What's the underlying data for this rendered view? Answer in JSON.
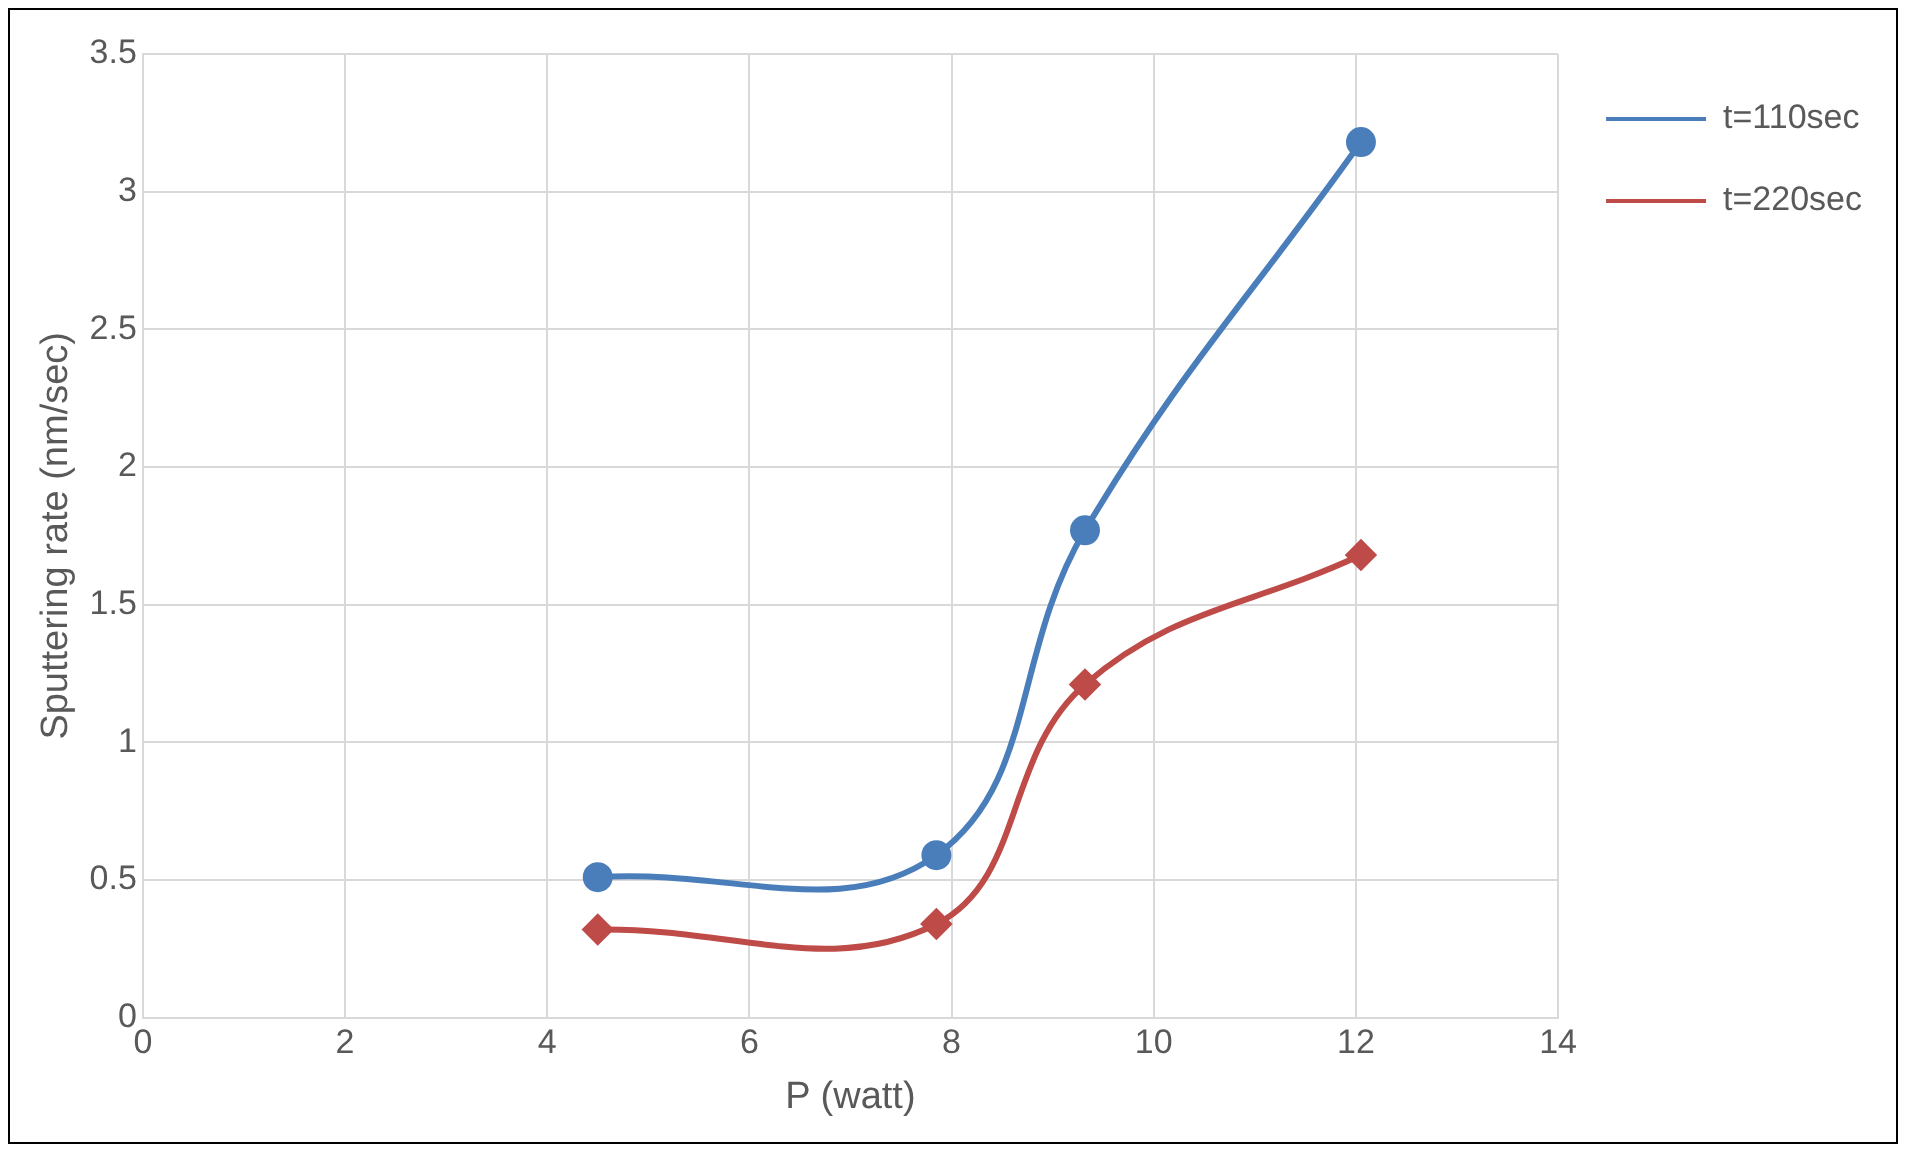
{
  "chart_data": {
    "type": "line",
    "xlabel": "P (watt)",
    "ylabel": "Sputtering rate (nm/sec)",
    "xlim": [
      0,
      14
    ],
    "xticks": [
      0,
      2,
      4,
      6,
      8,
      10,
      12,
      14
    ],
    "ylim": [
      0,
      3.5
    ],
    "yticks": [
      0,
      0.5,
      1,
      1.5,
      2,
      2.5,
      3,
      3.5
    ],
    "grid": true,
    "legend": "top right",
    "x": [
      4.5,
      7.85,
      9.32,
      12.05
    ],
    "series": [
      {
        "name": "t=110sec",
        "color": "#4a7ebb",
        "marker": "circle",
        "values": [
          0.51,
          0.59,
          1.77,
          3.18
        ]
      },
      {
        "name": "t=220sec",
        "color": "#be4b48",
        "marker": "diamond",
        "values": [
          0.32,
          0.34,
          1.21,
          1.68
        ]
      }
    ]
  }
}
